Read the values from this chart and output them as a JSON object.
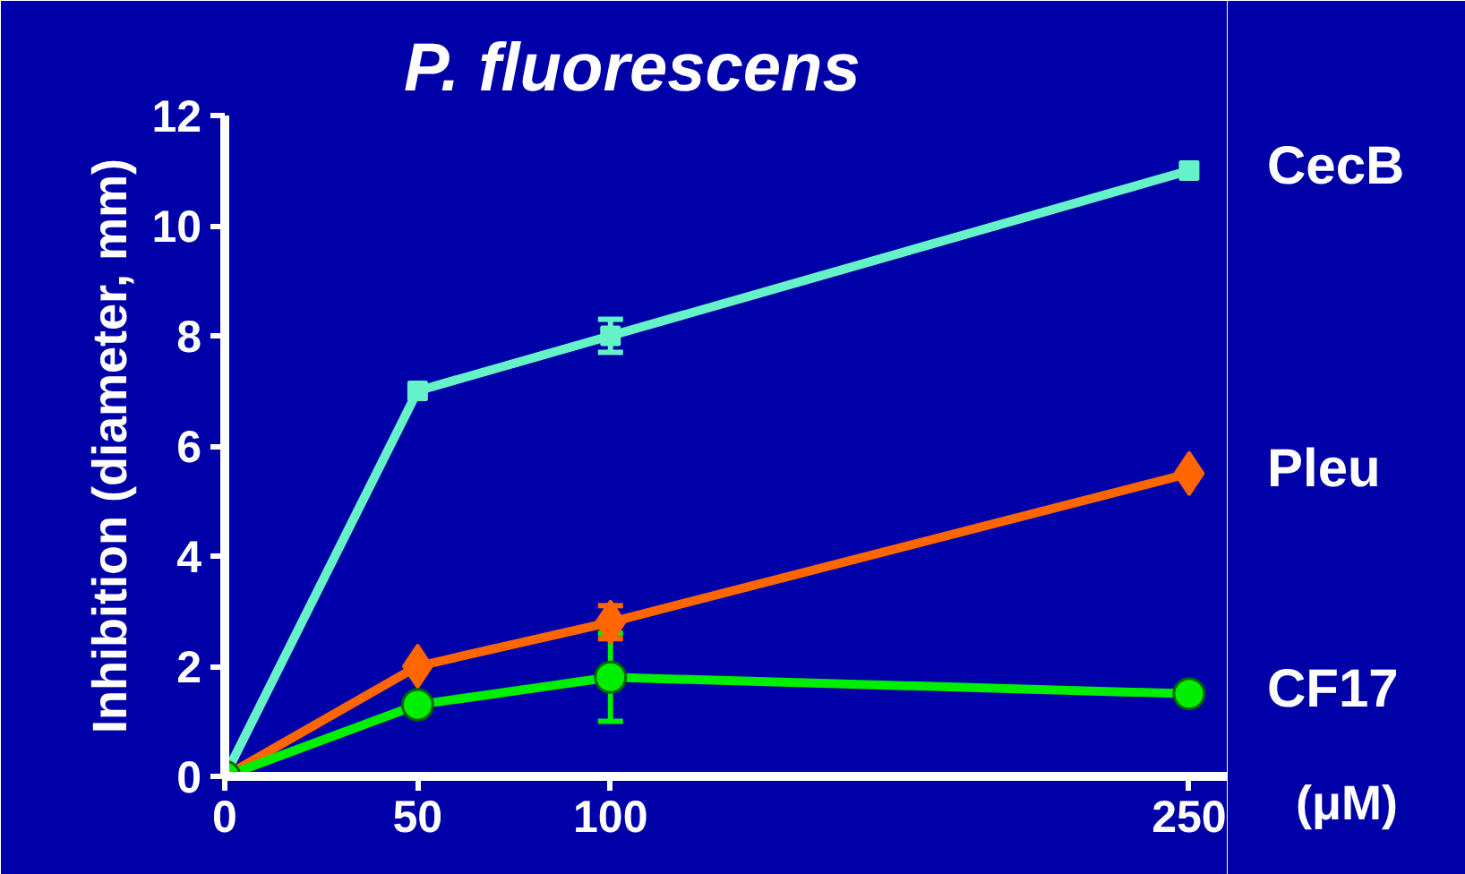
{
  "chart_data": {
    "type": "line",
    "title": "P. fluorescens",
    "ylabel": "Inhibition (diameter, mm)",
    "xlabel": "(μM)",
    "x": [
      0,
      50,
      100,
      250
    ],
    "xlim": [
      0,
      260
    ],
    "xticks": [
      0,
      50,
      100,
      250
    ],
    "ylim": [
      0,
      12
    ],
    "yticks": [
      0,
      2,
      4,
      6,
      8,
      10,
      12
    ],
    "grid": false,
    "series": [
      {
        "name": "CecB",
        "color": "#66f2c8",
        "marker": "square",
        "values": [
          0,
          7.0,
          8.0,
          11.0
        ],
        "errors": [
          null,
          null,
          0.3,
          null
        ]
      },
      {
        "name": "Pleu",
        "color": "#ff6600",
        "marker": "diamond",
        "values": [
          0,
          2.0,
          2.8,
          5.5
        ],
        "errors": [
          null,
          null,
          0.3,
          null
        ]
      },
      {
        "name": "CF17",
        "color": "#00ee00",
        "marker": "circle",
        "values": [
          0,
          1.3,
          1.8,
          1.5
        ],
        "errors": [
          null,
          null,
          0.8,
          null
        ]
      }
    ]
  }
}
